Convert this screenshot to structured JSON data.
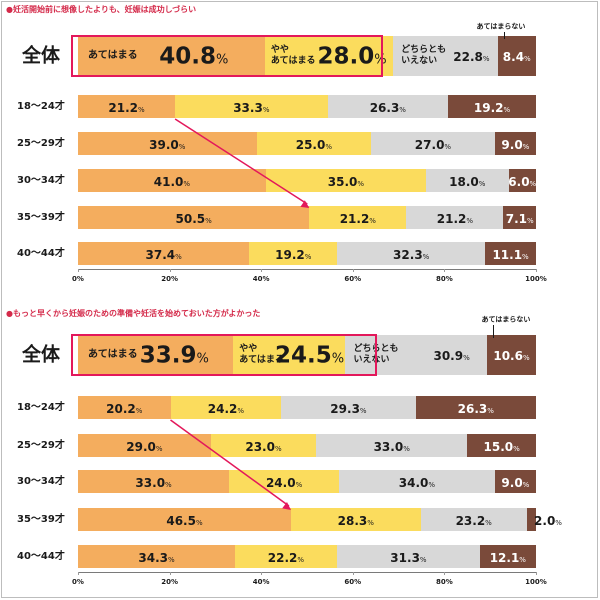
{
  "colors": {
    "agree": "#f4ad5e",
    "somewhat": "#fbdc5d",
    "neutral": "#d8d8d8",
    "disagree": "#7a4a3a",
    "title_dot": "#e8334a",
    "highlight_border": "#e3185b",
    "arrow": "#e3185b"
  },
  "chart_data": [
    {
      "type": "bar",
      "stacked": true,
      "orientation": "horizontal",
      "title": "●妊活開始前に想像したよりも、妊娠は成功しづらい",
      "categories": [
        "全体",
        "18〜24才",
        "25〜29才",
        "30〜34才",
        "35〜39才",
        "40〜44才"
      ],
      "series": [
        {
          "name": "あてはまる",
          "values": [
            40.8,
            21.2,
            39.0,
            41.0,
            50.5,
            37.4
          ]
        },
        {
          "name": "ややあてはまる",
          "values": [
            28.0,
            33.3,
            25.0,
            35.0,
            21.2,
            19.2
          ]
        },
        {
          "name": "どちらともいえない",
          "values": [
            22.8,
            26.3,
            27.0,
            18.0,
            21.2,
            32.3
          ]
        },
        {
          "name": "あてはまらない",
          "values": [
            8.4,
            19.2,
            9.0,
            6.0,
            7.1,
            11.1
          ]
        }
      ],
      "total_labels": {
        "agree": "あてはまる",
        "somewhat_l1": "やや",
        "somewhat_l2": "あてはまる",
        "neutral_l1": "どちらとも",
        "neutral_l2": "いえない",
        "disagree_callout": "あてはまらない"
      },
      "value_labels": [
        [
          "40.8",
          "28.0",
          "22.8",
          "8.4"
        ],
        [
          "21.2",
          "33.3",
          "26.3",
          "19.2"
        ],
        [
          "39.0",
          "25.0",
          "27.0",
          "9.0"
        ],
        [
          "41.0",
          "35.0",
          "18.0",
          "6.0"
        ],
        [
          "50.5",
          "21.2",
          "21.2",
          "7.1"
        ],
        [
          "37.4",
          "19.2",
          "32.3",
          "11.1"
        ]
      ],
      "unit": "%",
      "xlim": [
        0,
        100
      ],
      "xticks": [
        "0%",
        "20%",
        "40%",
        "60%",
        "80%",
        "100%"
      ],
      "arrow": {
        "from_category": "18〜24才",
        "to_category": "35〜39才",
        "series": "あてはまる"
      }
    },
    {
      "type": "bar",
      "stacked": true,
      "orientation": "horizontal",
      "title": "●もっと早くから妊娠のための準備や妊活を始めておいた方がよかった",
      "categories": [
        "全体",
        "18〜24才",
        "25〜29才",
        "30〜34才",
        "35〜39才",
        "40〜44才"
      ],
      "series": [
        {
          "name": "あてはまる",
          "values": [
            33.9,
            20.2,
            29.0,
            33.0,
            46.5,
            34.3
          ]
        },
        {
          "name": "ややあてはまる",
          "values": [
            24.5,
            24.2,
            23.0,
            24.0,
            28.3,
            22.2
          ]
        },
        {
          "name": "どちらともいえない",
          "values": [
            30.9,
            29.3,
            33.0,
            34.0,
            23.2,
            31.3
          ]
        },
        {
          "name": "あてはまらない",
          "values": [
            10.6,
            26.3,
            15.0,
            9.0,
            2.0,
            12.1
          ]
        }
      ],
      "total_labels": {
        "agree": "あてはまる",
        "somewhat_l1": "やや",
        "somewhat_l2": "あてはまる",
        "neutral_l1": "どちらとも",
        "neutral_l2": "いえない",
        "disagree_callout": "あてはまらない"
      },
      "value_labels": [
        [
          "33.9",
          "24.5",
          "30.9",
          "10.6"
        ],
        [
          "20.2",
          "24.2",
          "29.3",
          "26.3"
        ],
        [
          "29.0",
          "23.0",
          "33.0",
          "15.0"
        ],
        [
          "33.0",
          "24.0",
          "34.0",
          "9.0"
        ],
        [
          "46.5",
          "28.3",
          "23.2",
          "2.0"
        ],
        [
          "34.3",
          "22.2",
          "31.3",
          "12.1"
        ]
      ],
      "unit": "%",
      "xlim": [
        0,
        100
      ],
      "xticks": [
        "0%",
        "20%",
        "40%",
        "60%",
        "80%",
        "100%"
      ],
      "arrow": {
        "from_category": "18〜24才",
        "to_category": "35〜39才",
        "series": "あてはまる"
      }
    }
  ]
}
